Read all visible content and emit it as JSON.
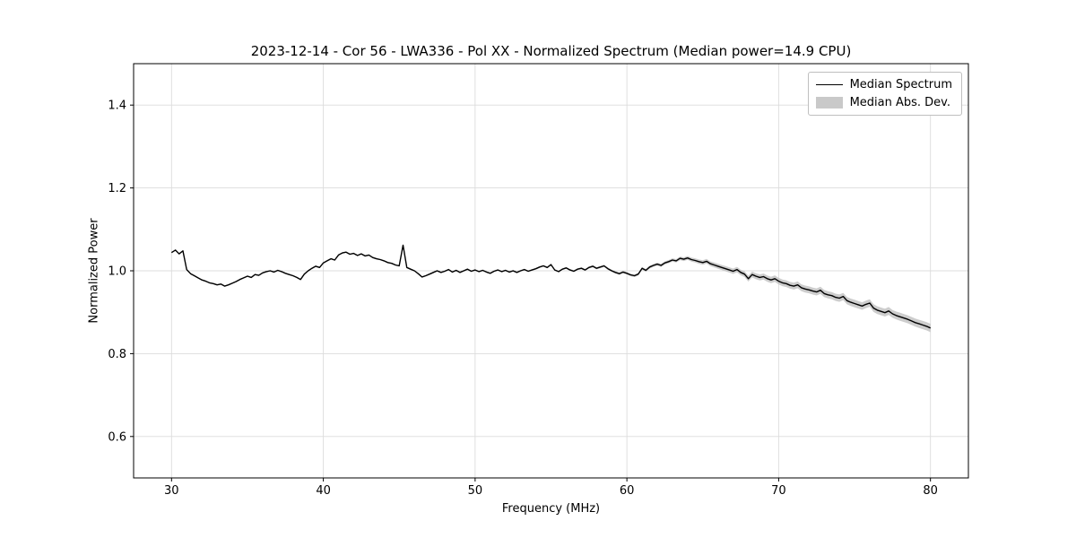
{
  "chart_data": {
    "type": "line",
    "title": "2023-12-14 - Cor 56 - LWA336 - Pol XX - Normalized Spectrum (Median power=14.9 CPU)",
    "xlabel": "Frequency (MHz)",
    "ylabel": "Normalized Power",
    "xlim": [
      27.5,
      82.5
    ],
    "ylim": [
      0.5,
      1.5
    ],
    "xticks": [
      30,
      40,
      50,
      60,
      70,
      80
    ],
    "yticks": [
      0.6,
      0.8,
      1.0,
      1.2,
      1.4
    ],
    "grid": true,
    "line_color": "#000000",
    "band_color": "#c0c0c0",
    "grid_color": "#dcdcdc",
    "legend": {
      "position": "upper right",
      "entries": [
        {
          "label": "Median Spectrum",
          "type": "line",
          "color": "#000000"
        },
        {
          "label": "Median Abs. Dev.",
          "type": "patch",
          "color": "#c9c9c9"
        }
      ]
    },
    "x_start": 30.0,
    "x_step": 0.25,
    "series": [
      {
        "name": "Median Spectrum",
        "values": [
          1.044,
          1.05,
          1.041,
          1.048,
          1.003,
          0.993,
          0.988,
          0.983,
          0.978,
          0.975,
          0.971,
          0.969,
          0.966,
          0.968,
          0.963,
          0.966,
          0.97,
          0.974,
          0.979,
          0.983,
          0.987,
          0.984,
          0.991,
          0.989,
          0.995,
          0.998,
          1.0,
          0.997,
          1.001,
          0.998,
          0.994,
          0.991,
          0.988,
          0.984,
          0.979,
          0.992,
          1.0,
          1.006,
          1.011,
          1.008,
          1.019,
          1.024,
          1.029,
          1.026,
          1.038,
          1.043,
          1.045,
          1.04,
          1.042,
          1.037,
          1.041,
          1.036,
          1.038,
          1.032,
          1.029,
          1.027,
          1.024,
          1.02,
          1.018,
          1.014,
          1.012,
          1.062,
          1.008,
          1.004,
          1.0,
          0.993,
          0.985,
          0.988,
          0.992,
          0.996,
          1.0,
          0.996,
          0.999,
          1.003,
          0.997,
          1.001,
          0.996,
          1.0,
          1.004,
          0.999,
          1.002,
          0.998,
          1.001,
          0.997,
          0.994,
          0.999,
          1.002,
          0.998,
          1.001,
          0.997,
          1.0,
          0.996,
          1.0,
          1.003,
          0.999,
          1.002,
          1.005,
          1.009,
          1.012,
          1.008,
          1.015,
          1.002,
          0.998,
          1.004,
          1.007,
          1.002,
          0.999,
          1.004,
          1.006,
          1.002,
          1.008,
          1.011,
          1.006,
          1.009,
          1.012,
          1.005,
          1.0,
          0.996,
          0.993,
          0.997,
          0.994,
          0.99,
          0.988,
          0.992,
          1.006,
          1.001,
          1.009,
          1.013,
          1.016,
          1.013,
          1.019,
          1.022,
          1.026,
          1.024,
          1.03,
          1.028,
          1.031,
          1.027,
          1.025,
          1.022,
          1.02,
          1.023,
          1.017,
          1.014,
          1.011,
          1.008,
          1.005,
          1.002,
          0.999,
          1.003,
          0.996,
          0.992,
          0.981,
          0.991,
          0.987,
          0.984,
          0.986,
          0.981,
          0.978,
          0.981,
          0.975,
          0.971,
          0.969,
          0.965,
          0.963,
          0.966,
          0.959,
          0.956,
          0.954,
          0.951,
          0.949,
          0.953,
          0.945,
          0.942,
          0.94,
          0.936,
          0.934,
          0.938,
          0.928,
          0.924,
          0.921,
          0.918,
          0.915,
          0.919,
          0.922,
          0.91,
          0.905,
          0.902,
          0.899,
          0.903,
          0.896,
          0.892,
          0.889,
          0.886,
          0.883,
          0.879,
          0.875,
          0.872,
          0.869,
          0.866,
          0.862
        ]
      }
    ],
    "mad_band": {
      "name": "Median Abs. Dev.",
      "x": [
        30,
        55,
        60,
        63,
        66,
        70,
        75,
        80
      ],
      "halfwidth": [
        0.0015,
        0.002,
        0.003,
        0.004,
        0.006,
        0.008,
        0.009,
        0.01
      ]
    }
  }
}
